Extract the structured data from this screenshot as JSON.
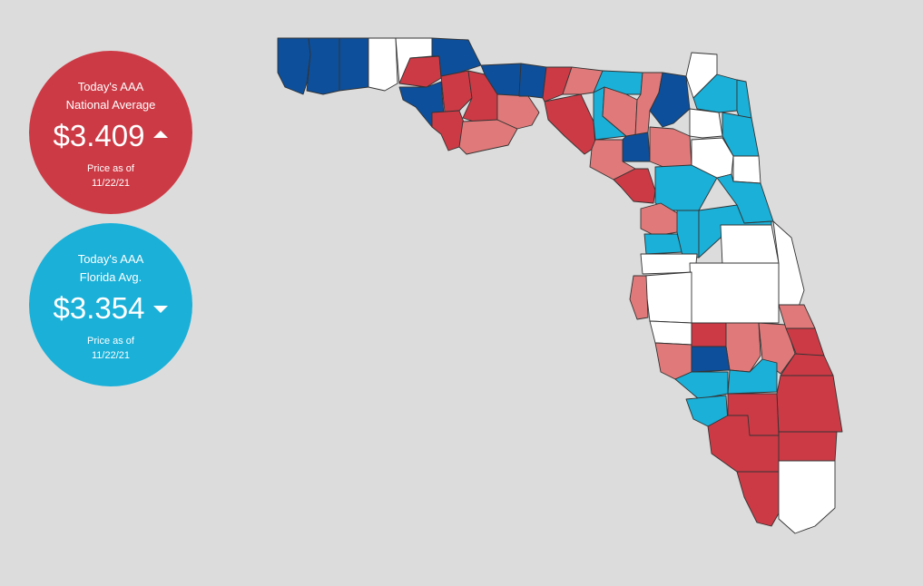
{
  "national": {
    "heading_line1": "Today's AAA",
    "heading_line2": "National Average",
    "price": "$3.409",
    "trend": "up",
    "asof_line1": "Price as of",
    "asof_line2": "11/22/21",
    "color": "#cc3a45"
  },
  "florida": {
    "heading_line1": "Today's AAA",
    "heading_line2": "Florida Avg.",
    "price": "$3.354",
    "trend": "down",
    "asof_line1": "Price as of",
    "asof_line2": "11/22/21",
    "color": "#1ab0d8"
  },
  "map": {
    "palette": {
      "dark_blue": "#0d4f9b",
      "light_blue": "#1ab0d8",
      "white": "#ffffff",
      "pink": "#e07a7a",
      "red": "#cc3a45"
    }
  }
}
